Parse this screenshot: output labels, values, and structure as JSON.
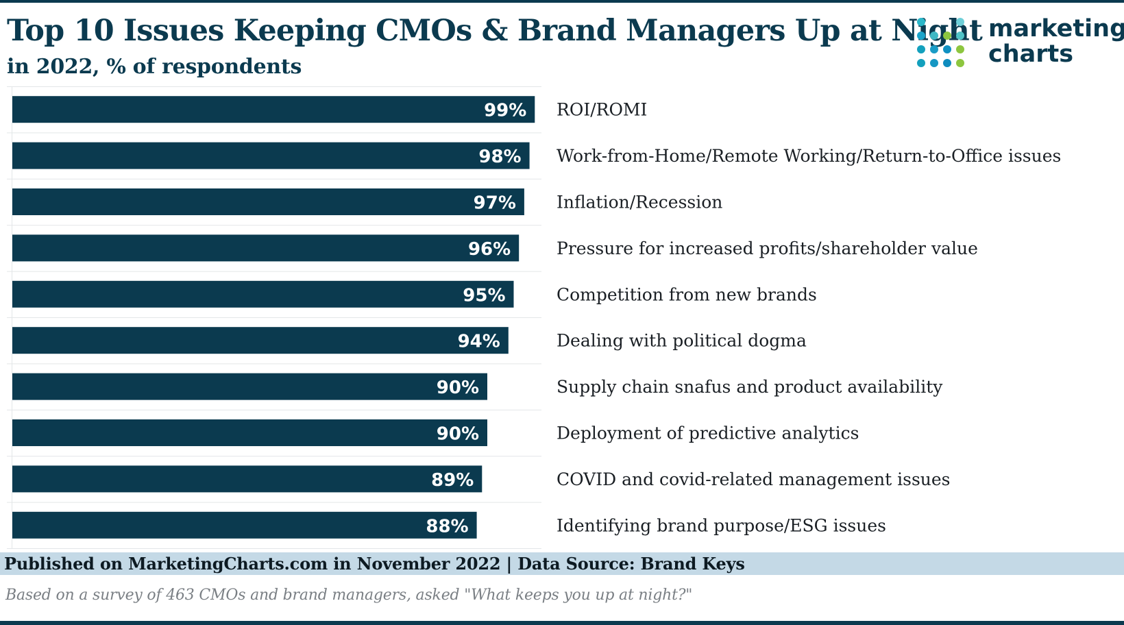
{
  "title": "Top 10 Issues Keeping CMOs & Brand Managers Up at Night",
  "subtitle": "in 2022, % of respondents",
  "logo": {
    "line1": "marketing",
    "line2": "charts"
  },
  "colors": {
    "bar": "#0b3a4f",
    "text": "#0b3a4f",
    "footer_band": "#c4d9e6",
    "logo_blue": "#1aa3c9",
    "logo_green": "#8dc63f"
  },
  "chart_data": {
    "type": "bar",
    "orientation": "horizontal",
    "categories": [
      "ROI/ROMI",
      "Work-from-Home/Remote Working/Return-to-Office issues",
      "Inflation/Recession",
      "Pressure for increased profits/shareholder value",
      "Competition from new brands",
      "Dealing with political dogma",
      "Supply chain snafus and product availability",
      "Deployment of predictive analytics",
      "COVID and covid-related management issues",
      "Identifying brand purpose/ESG issues"
    ],
    "values": [
      99,
      98,
      97,
      96,
      95,
      94,
      90,
      90,
      89,
      88
    ],
    "value_labels": [
      "99%",
      "98%",
      "97%",
      "96%",
      "95%",
      "94%",
      "90%",
      "90%",
      "89%",
      "88%"
    ],
    "xlim": [
      0,
      100
    ]
  },
  "footer": {
    "source": "Published on MarketingCharts.com in November 2022 | Data Source: Brand Keys",
    "note": "Based on a survey of 463 CMOs and brand managers, asked \"What keeps you up at night?\""
  }
}
